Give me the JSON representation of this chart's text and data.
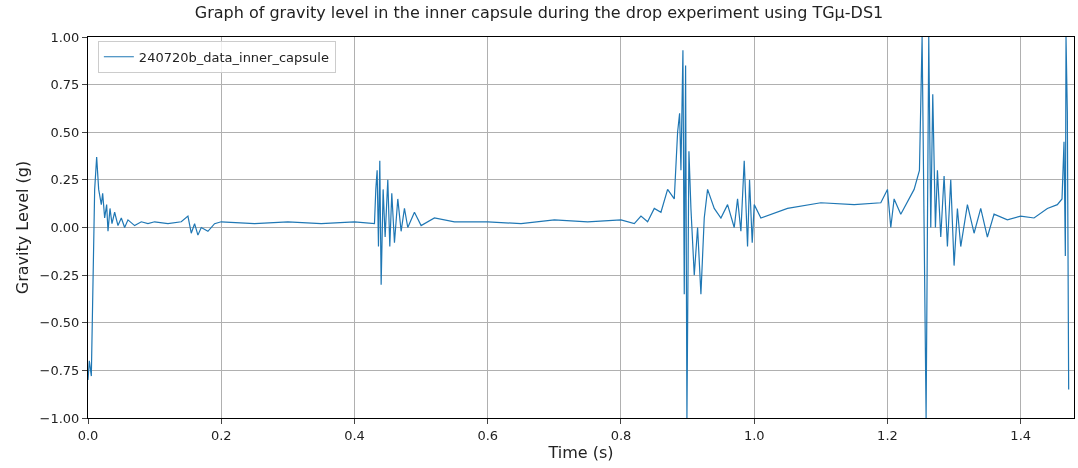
{
  "chart_data": {
    "type": "line",
    "title": "Graph of gravity level in the inner capsule during the drop experiment using TGμ-DS1",
    "xlabel": "Time (s)",
    "ylabel": "Gravity Level (g)",
    "xlim": [
      0,
      1.48
    ],
    "ylim": [
      -1,
      1
    ],
    "xticks": [
      {
        "value": 0,
        "label": "0.0"
      },
      {
        "value": 0.2,
        "label": "0.2"
      },
      {
        "value": 0.4,
        "label": "0.4"
      },
      {
        "value": 0.6,
        "label": "0.6"
      },
      {
        "value": 0.8,
        "label": "0.8"
      },
      {
        "value": 1.0,
        "label": "1.0"
      },
      {
        "value": 1.2,
        "label": "1.2"
      },
      {
        "value": 1.4,
        "label": "1.4"
      }
    ],
    "yticks": [
      {
        "value": -1,
        "label": "−1.00"
      },
      {
        "value": -0.75,
        "label": "−0.75"
      },
      {
        "value": -0.5,
        "label": "−0.50"
      },
      {
        "value": -0.25,
        "label": "−0.25"
      },
      {
        "value": 0,
        "label": "0.00"
      },
      {
        "value": 0.25,
        "label": "0.25"
      },
      {
        "value": 0.5,
        "label": "0.50"
      },
      {
        "value": 0.75,
        "label": "0.75"
      },
      {
        "value": 1,
        "label": "1.00"
      }
    ],
    "grid": true,
    "legend": "top left",
    "marker": "none",
    "line_style": "solid",
    "series": [
      {
        "name": "240720b_data_inner_capsule",
        "color": "#1f77b4",
        "x": [
          0,
          0.002,
          0.005,
          0.01,
          0.013,
          0.016,
          0.02,
          0.022,
          0.025,
          0.028,
          0.03,
          0.033,
          0.036,
          0.04,
          0.045,
          0.05,
          0.055,
          0.06,
          0.07,
          0.08,
          0.09,
          0.1,
          0.12,
          0.14,
          0.15,
          0.155,
          0.16,
          0.165,
          0.17,
          0.18,
          0.19,
          0.2,
          0.25,
          0.3,
          0.35,
          0.4,
          0.43,
          0.432,
          0.434,
          0.436,
          0.438,
          0.44,
          0.443,
          0.446,
          0.45,
          0.453,
          0.456,
          0.46,
          0.465,
          0.47,
          0.475,
          0.48,
          0.49,
          0.5,
          0.52,
          0.55,
          0.6,
          0.65,
          0.7,
          0.75,
          0.8,
          0.82,
          0.83,
          0.84,
          0.85,
          0.86,
          0.87,
          0.88,
          0.885,
          0.888,
          0.89,
          0.893,
          0.895,
          0.897,
          0.899,
          0.902,
          0.905,
          0.91,
          0.915,
          0.92,
          0.925,
          0.93,
          0.94,
          0.95,
          0.96,
          0.97,
          0.975,
          0.98,
          0.985,
          0.99,
          0.993,
          0.997,
          1.0,
          1.01,
          1.05,
          1.1,
          1.15,
          1.19,
          1.2,
          1.205,
          1.21,
          1.22,
          1.24,
          1.248,
          1.252,
          1.255,
          1.258,
          1.262,
          1.265,
          1.268,
          1.272,
          1.275,
          1.28,
          1.285,
          1.29,
          1.295,
          1.3,
          1.305,
          1.31,
          1.32,
          1.33,
          1.34,
          1.35,
          1.36,
          1.38,
          1.4,
          1.42,
          1.44,
          1.455,
          1.462,
          1.465,
          1.467,
          1.468,
          1.47,
          1.472
        ],
        "values": [
          -0.8,
          -0.7,
          -0.78,
          0.2,
          0.37,
          0.2,
          0.12,
          0.18,
          0.05,
          0.12,
          -0.02,
          0.1,
          0.02,
          0.08,
          0.01,
          0.05,
          0.0,
          0.04,
          0.01,
          0.03,
          0.02,
          0.03,
          0.02,
          0.03,
          0.06,
          -0.03,
          0.02,
          -0.04,
          0.0,
          -0.02,
          0.02,
          0.03,
          0.02,
          0.03,
          0.02,
          0.03,
          0.02,
          0.2,
          0.3,
          -0.1,
          0.35,
          -0.3,
          0.2,
          -0.05,
          0.25,
          -0.1,
          0.18,
          -0.08,
          0.15,
          -0.02,
          0.1,
          0.0,
          0.08,
          0.01,
          0.05,
          0.03,
          0.03,
          0.02,
          0.04,
          0.03,
          0.04,
          0.02,
          0.06,
          0.03,
          0.1,
          0.08,
          0.2,
          0.15,
          0.5,
          0.6,
          0.3,
          0.93,
          -0.35,
          0.85,
          -1.0,
          0.4,
          0.1,
          -0.25,
          0.0,
          -0.35,
          0.05,
          0.2,
          0.1,
          0.05,
          0.12,
          0.0,
          0.15,
          -0.02,
          0.35,
          -0.1,
          0.25,
          -0.08,
          0.12,
          0.05,
          0.1,
          0.13,
          0.12,
          0.13,
          0.2,
          0.0,
          0.15,
          0.07,
          0.2,
          0.3,
          1.0,
          0.0,
          -1.0,
          1.0,
          0.0,
          0.7,
          0.0,
          0.3,
          -0.05,
          0.27,
          -0.1,
          0.25,
          -0.2,
          0.1,
          -0.1,
          0.12,
          -0.03,
          0.1,
          -0.05,
          0.07,
          0.04,
          0.06,
          0.05,
          0.1,
          0.12,
          0.15,
          0.45,
          -0.15,
          1.0,
          0.6,
          -0.85
        ]
      }
    ]
  }
}
